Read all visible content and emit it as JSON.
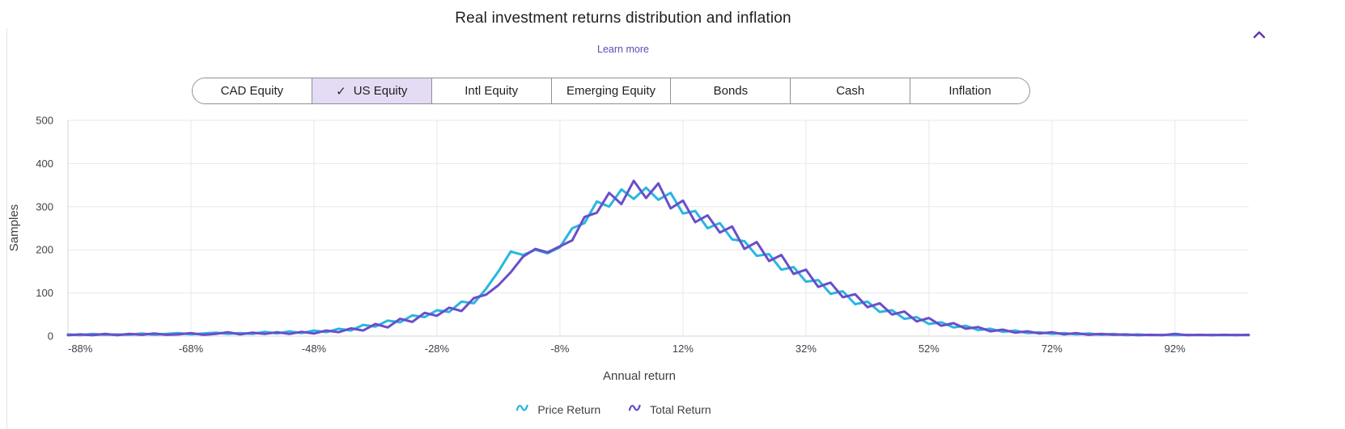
{
  "header": {
    "title": "Real investment returns distribution  and inflation",
    "learn_more_label": "Learn more",
    "collapse_icon": "chevron-up"
  },
  "tabs": {
    "items": [
      {
        "label": "CAD Equity",
        "selected": false
      },
      {
        "label": "US Equity",
        "selected": true,
        "check_icon": "✓"
      },
      {
        "label": "Intl Equity",
        "selected": false
      },
      {
        "label": "Emerging Equity",
        "selected": false
      },
      {
        "label": "Bonds",
        "selected": false
      },
      {
        "label": "Cash",
        "selected": false
      },
      {
        "label": "Inflation",
        "selected": false
      }
    ]
  },
  "colors": {
    "accent_purple": "#5e35b1",
    "learn_more_link": "#5f4bb5",
    "selected_tab_bg": "#e4dbf4",
    "price_return": "#29b6e0",
    "total_return": "#6a4ec9",
    "gridline": "#e8e8ee",
    "axis_line": "#d5d5dd",
    "axis_text": "#3f4349"
  },
  "chart_data": {
    "type": "line",
    "title": "Real investment returns distribution and inflation",
    "xlabel": "Annual return",
    "ylabel": "Samples",
    "x_unit": "%",
    "xlim": [
      -88,
      104
    ],
    "ylim": [
      0,
      500
    ],
    "grid": true,
    "legend_position": "bottom",
    "yticks": [
      0,
      100,
      200,
      300,
      400,
      500
    ],
    "xticks": [
      -88,
      -68,
      -48,
      -28,
      -8,
      12,
      32,
      52,
      72,
      92
    ],
    "xtick_labels": [
      "-88%",
      "-68%",
      "-48%",
      "-28%",
      "-8%",
      "12%",
      "32%",
      "52%",
      "72%",
      "92%"
    ],
    "x": [
      -88,
      -86,
      -84,
      -82,
      -80,
      -78,
      -76,
      -74,
      -72,
      -70,
      -68,
      -66,
      -64,
      -62,
      -60,
      -58,
      -56,
      -54,
      -52,
      -50,
      -48,
      -46,
      -44,
      -42,
      -40,
      -38,
      -36,
      -34,
      -32,
      -30,
      -28,
      -26,
      -24,
      -22,
      -20,
      -18,
      -16,
      -14,
      -12,
      -10,
      -8,
      -6,
      -4,
      -2,
      0,
      2,
      4,
      6,
      8,
      10,
      12,
      14,
      16,
      18,
      20,
      22,
      24,
      26,
      28,
      30,
      32,
      34,
      36,
      38,
      40,
      42,
      44,
      46,
      48,
      50,
      52,
      54,
      56,
      58,
      60,
      62,
      64,
      66,
      68,
      70,
      72,
      74,
      76,
      78,
      80,
      82,
      84,
      86,
      88,
      90,
      92,
      94,
      96,
      98,
      100,
      102,
      104
    ],
    "series": [
      {
        "name": "Price Return",
        "color": "#29b6e0",
        "values": [
          4,
          2,
          5,
          3,
          4,
          3,
          6,
          3,
          5,
          7,
          4,
          6,
          8,
          5,
          7,
          5,
          10,
          6,
          11,
          7,
          13,
          9,
          17,
          13,
          26,
          22,
          36,
          32,
          48,
          44,
          60,
          56,
          80,
          76,
          110,
          150,
          196,
          188,
          200,
          192,
          206,
          250,
          262,
          312,
          300,
          340,
          318,
          344,
          316,
          332,
          284,
          290,
          250,
          262,
          224,
          220,
          186,
          190,
          154,
          160,
          126,
          130,
          98,
          104,
          74,
          80,
          56,
          60,
          40,
          44,
          28,
          32,
          20,
          24,
          14,
          17,
          10,
          13,
          7,
          9,
          5,
          7,
          4,
          6,
          3,
          5,
          2,
          4,
          2,
          3,
          2,
          3,
          2,
          3,
          2,
          3,
          2
        ]
      },
      {
        "name": "Total Return",
        "color": "#6a4ec9",
        "values": [
          2,
          4,
          2,
          5,
          2,
          5,
          3,
          6,
          3,
          4,
          7,
          3,
          5,
          9,
          4,
          8,
          5,
          9,
          5,
          10,
          6,
          13,
          9,
          18,
          13,
          28,
          20,
          40,
          33,
          54,
          47,
          66,
          58,
          88,
          96,
          118,
          148,
          184,
          202,
          194,
          208,
          222,
          276,
          286,
          332,
          306,
          360,
          320,
          354,
          296,
          314,
          264,
          280,
          240,
          254,
          202,
          218,
          174,
          188,
          144,
          154,
          114,
          124,
          90,
          97,
          67,
          76,
          50,
          57,
          34,
          42,
          24,
          30,
          17,
          21,
          11,
          15,
          8,
          11,
          6,
          9,
          4,
          7,
          3,
          5,
          3,
          4,
          2,
          3,
          2,
          5,
          2,
          3,
          2,
          3,
          2,
          3
        ]
      }
    ]
  }
}
